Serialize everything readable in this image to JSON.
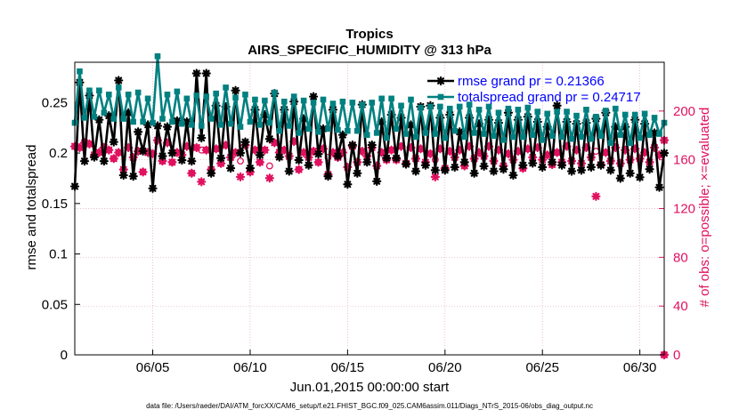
{
  "chart_data": {
    "type": "line",
    "title": "Tropics",
    "subtitle": "AIRS_SPECIFIC_HUMIDITY @ 313 hPa",
    "xlabel": "Jun.01,2015 00:00:00 start",
    "ylabel_left": "rmse and totalspread",
    "ylabel_right": "# of obs: o=possible; ×=evaluated",
    "footer": "data file: /Users/raeder/DAI/ATM_forcXX/CAM6_setup/f.e21.FHIST_BGC.f09_025.CAM6assim.011/Diags_NTrS_2015-06/obs_diag_output.nc",
    "xlim": [
      1.0,
      31.25
    ],
    "ylim_left": [
      0,
      0.29
    ],
    "ylim_right": [
      0,
      240
    ],
    "x_ticks": [
      5,
      10,
      15,
      20,
      25,
      30
    ],
    "x_tick_labels": [
      "06/05",
      "06/10",
      "06/15",
      "06/20",
      "06/25",
      "06/30"
    ],
    "y_left_ticks": [
      0,
      0.05,
      0.1,
      0.15,
      0.2,
      0.25
    ],
    "y_left_tick_labels": [
      "0",
      "0.05",
      "0.1",
      "0.15",
      "0.2",
      "0.25"
    ],
    "y_right_ticks": [
      0,
      40,
      80,
      120,
      160,
      200
    ],
    "y_right_tick_labels": [
      "0",
      "40",
      "80",
      "120",
      "160",
      "200"
    ],
    "legend": [
      "rmse grand pr = 0.21366",
      "totalspread grand pr = 0.24717"
    ],
    "legend_position": "top-right",
    "grid": true,
    "x": [
      1.0,
      1.25,
      1.5,
      1.75,
      2.0,
      2.25,
      2.5,
      2.75,
      3.0,
      3.25,
      3.5,
      3.75,
      4.0,
      4.25,
      4.5,
      4.75,
      5.0,
      5.25,
      5.5,
      5.75,
      6.0,
      6.25,
      6.5,
      6.75,
      7.0,
      7.25,
      7.5,
      7.75,
      8.0,
      8.25,
      8.5,
      8.75,
      9.0,
      9.25,
      9.5,
      9.75,
      10.0,
      10.25,
      10.5,
      10.75,
      11.0,
      11.25,
      11.5,
      11.75,
      12.0,
      12.25,
      12.5,
      12.75,
      13.0,
      13.25,
      13.5,
      13.75,
      14.0,
      14.25,
      14.5,
      14.75,
      15.0,
      15.25,
      15.5,
      15.75,
      16.0,
      16.25,
      16.5,
      16.75,
      17.0,
      17.25,
      17.5,
      17.75,
      18.0,
      18.25,
      18.5,
      18.75,
      19.0,
      19.25,
      19.5,
      19.75,
      20.0,
      20.25,
      20.5,
      20.75,
      21.0,
      21.25,
      21.5,
      21.75,
      22.0,
      22.25,
      22.5,
      22.75,
      23.0,
      23.25,
      23.5,
      23.75,
      24.0,
      24.25,
      24.5,
      24.75,
      25.0,
      25.25,
      25.5,
      25.75,
      26.0,
      26.25,
      26.5,
      26.75,
      27.0,
      27.25,
      27.5,
      27.75,
      28.0,
      28.25,
      28.5,
      28.75,
      29.0,
      29.25,
      29.5,
      29.75,
      30.0,
      30.25,
      30.5,
      30.75,
      31.0,
      31.25
    ],
    "series": [
      {
        "name": "rmse",
        "color": "#000000",
        "axis": "left",
        "values": [
          0.167,
          0.27,
          0.192,
          0.257,
          0.196,
          0.233,
          0.192,
          0.237,
          0.211,
          0.272,
          0.178,
          0.24,
          0.177,
          0.221,
          0.202,
          0.228,
          0.165,
          0.227,
          0.197,
          0.226,
          0.2,
          0.232,
          0.193,
          0.231,
          0.192,
          0.279,
          0.215,
          0.279,
          0.18,
          0.247,
          0.195,
          0.246,
          0.185,
          0.262,
          0.2,
          0.211,
          0.185,
          0.243,
          0.198,
          0.238,
          0.214,
          0.259,
          0.196,
          0.243,
          0.182,
          0.251,
          0.193,
          0.234,
          0.188,
          0.256,
          0.199,
          0.224,
          0.177,
          0.243,
          0.197,
          0.218,
          0.169,
          0.208,
          0.18,
          0.248,
          0.191,
          0.208,
          0.172,
          0.231,
          0.195,
          0.238,
          0.195,
          0.235,
          0.189,
          0.228,
          0.182,
          0.246,
          0.188,
          0.247,
          0.183,
          0.235,
          0.183,
          0.238,
          0.186,
          0.221,
          0.191,
          0.235,
          0.18,
          0.229,
          0.187,
          0.233,
          0.182,
          0.23,
          0.184,
          0.24,
          0.178,
          0.233,
          0.188,
          0.236,
          0.19,
          0.231,
          0.186,
          0.226,
          0.191,
          0.247,
          0.188,
          0.231,
          0.182,
          0.229,
          0.183,
          0.23,
          0.186,
          0.234,
          0.188,
          0.24,
          0.183,
          0.226,
          0.175,
          0.226,
          0.18,
          0.233,
          0.176,
          0.229,
          0.184,
          0.22,
          0.166,
          0.2
        ]
      },
      {
        "name": "totalspread",
        "color": "#008080",
        "axis": "left",
        "values": [
          0.23,
          0.281,
          0.235,
          0.262,
          0.236,
          0.262,
          0.24,
          0.258,
          0.234,
          0.265,
          0.234,
          0.258,
          0.231,
          0.26,
          0.231,
          0.254,
          0.23,
          0.296,
          0.234,
          0.258,
          0.231,
          0.261,
          0.229,
          0.254,
          0.228,
          0.257,
          0.227,
          0.256,
          0.234,
          0.259,
          0.228,
          0.265,
          0.229,
          0.255,
          0.226,
          0.258,
          0.231,
          0.253,
          0.228,
          0.252,
          0.23,
          0.26,
          0.222,
          0.251,
          0.227,
          0.256,
          0.22,
          0.252,
          0.224,
          0.25,
          0.221,
          0.253,
          0.224,
          0.249,
          0.223,
          0.251,
          0.222,
          0.25,
          0.222,
          0.248,
          0.218,
          0.25,
          0.22,
          0.254,
          0.215,
          0.254,
          0.224,
          0.247,
          0.219,
          0.253,
          0.216,
          0.245,
          0.22,
          0.246,
          0.219,
          0.246,
          0.215,
          0.244,
          0.222,
          0.246,
          0.216,
          0.248,
          0.22,
          0.243,
          0.219,
          0.246,
          0.217,
          0.24,
          0.213,
          0.244,
          0.216,
          0.243,
          0.216,
          0.245,
          0.218,
          0.241,
          0.213,
          0.239,
          0.217,
          0.241,
          0.216,
          0.241,
          0.214,
          0.237,
          0.216,
          0.243,
          0.214,
          0.236,
          0.217,
          0.242,
          0.21,
          0.244,
          0.218,
          0.238,
          0.21,
          0.238,
          0.215,
          0.239,
          0.218,
          0.235,
          0.219,
          0.23
        ]
      },
      {
        "name": "obs possible",
        "color": "#e0115f",
        "axis": "right",
        "marker": "o",
        "values": [
          171,
          170,
          174,
          173,
          164,
          166,
          170,
          168,
          161,
          166,
          152,
          170,
          162,
          167,
          150,
          166,
          165,
          176,
          159,
          174,
          158,
          166,
          164,
          171,
          149,
          170,
          168,
          168,
          152,
          169,
          157,
          172,
          162,
          166,
          159,
          172,
          150,
          168,
          158,
          168,
          155,
          174,
          166,
          168,
          163,
          175,
          152,
          166,
          162,
          167,
          158,
          169,
          162,
          166,
          162,
          166,
          154,
          171,
          158,
          167,
          163,
          170,
          155,
          166,
          160,
          168,
          160,
          171,
          157,
          170,
          161,
          169,
          158,
          165,
          160,
          169,
          153,
          167,
          162,
          168,
          155,
          171,
          161,
          166,
          163,
          171,
          159,
          168,
          155,
          165,
          160,
          167,
          153,
          169,
          162,
          170,
          160,
          164,
          156,
          166,
          158,
          171,
          159,
          168,
          157,
          170,
          162,
          167,
          156,
          166,
          159,
          170,
          157,
          168,
          160,
          169,
          161,
          166,
          158,
          170,
          164,
          176
        ]
      },
      {
        "name": "obs evaluated",
        "color": "#e0115f",
        "axis": "right",
        "marker": "*",
        "values": [
          171,
          170,
          174,
          173,
          164,
          166,
          170,
          168,
          161,
          166,
          152,
          170,
          162,
          167,
          150,
          166,
          165,
          176,
          159,
          174,
          158,
          166,
          164,
          171,
          149,
          170,
          142,
          168,
          152,
          169,
          157,
          172,
          162,
          166,
          146,
          172,
          150,
          168,
          158,
          168,
          145,
          174,
          166,
          168,
          163,
          175,
          152,
          166,
          162,
          167,
          158,
          169,
          148,
          166,
          162,
          166,
          154,
          171,
          158,
          167,
          163,
          170,
          155,
          166,
          160,
          168,
          160,
          171,
          157,
          170,
          161,
          169,
          158,
          165,
          146,
          169,
          153,
          167,
          162,
          168,
          155,
          171,
          161,
          166,
          163,
          171,
          159,
          168,
          155,
          165,
          160,
          167,
          153,
          169,
          162,
          170,
          160,
          164,
          156,
          166,
          158,
          171,
          159,
          168,
          157,
          170,
          162,
          130,
          156,
          166,
          159,
          170,
          157,
          168,
          160,
          169,
          161,
          166,
          158,
          170,
          164,
          176
        ]
      }
    ],
    "edge_marker": {
      "x": 31.25,
      "value": 0,
      "color": "#e0115f"
    }
  }
}
